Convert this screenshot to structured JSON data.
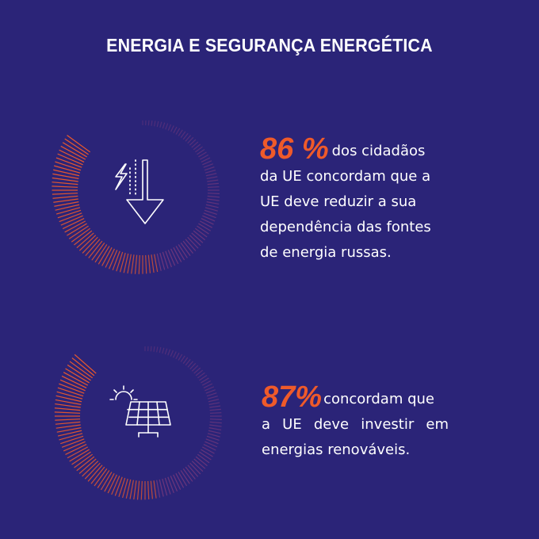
{
  "header": {
    "title": "ENERGIA E SEGURANÇA ENERGÉTICA"
  },
  "colors": {
    "background": "#2b2478",
    "accent": "#ef5a2a",
    "ticks": "#8a3f7d",
    "text": "#ffffff"
  },
  "stats": [
    {
      "value": "86 %",
      "level_percent": 86,
      "icon": "energy-drop-arrow-icon",
      "lines": [
        "dos cidadãos",
        "da UE concordam que a",
        "UE deve reduzir a sua",
        "dependência das fontes",
        "de energia russas."
      ]
    },
    {
      "value": "87%",
      "level_percent": 87,
      "icon": "solar-panel-icon",
      "lines": [
        "concordam que",
        "a UE deve investir em",
        "energias renováveis."
      ]
    }
  ]
}
